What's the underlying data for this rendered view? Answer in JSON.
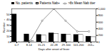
{
  "chart_data": {
    "type": "bar",
    "categories": [
      "0-7",
      "8-14",
      "15-21",
      "22-28",
      "29-100",
      "101-200",
      "201+"
    ],
    "series": [
      {
        "name": "No. patients",
        "type": "bar",
        "color": "#000000",
        "values": [
          50,
          14,
          13,
          16,
          14,
          13,
          10
        ]
      },
      {
        "name": "Patients Nab+",
        "type": "bar",
        "color": "#ffffff",
        "values": [
          0,
          2,
          12,
          15,
          13,
          13,
          9
        ]
      },
      {
        "name": ">8x Mean Nab titer",
        "type": "line",
        "axis": "y2",
        "color": "#555555",
        "marker": "circle",
        "values": [
          0,
          40,
          640,
          1000,
          640,
          320,
          320
        ]
      }
    ],
    "xlabel": "Days after onset of fever",
    "ylabel": "Number",
    "ylim": [
      0,
      60
    ],
    "yticks": [
      0,
      10,
      20,
      30,
      40,
      50
    ],
    "y2lim": [
      0,
      1000
    ],
    "y2ticks": [
      0,
      200,
      400,
      600,
      800,
      1000
    ],
    "legend": "top"
  }
}
